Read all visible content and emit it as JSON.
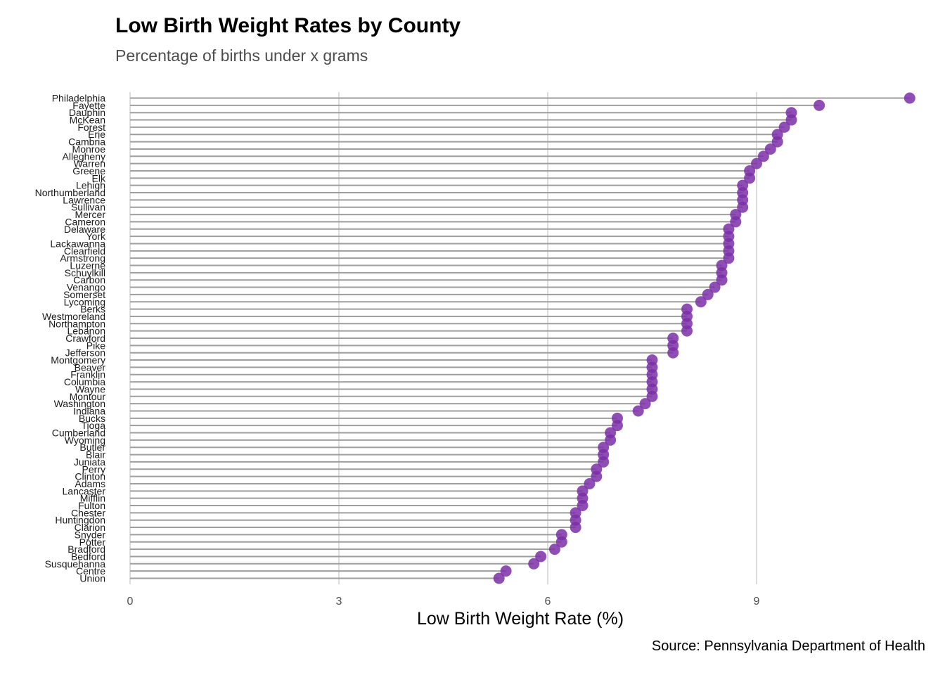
{
  "chart_data": {
    "type": "lollipop",
    "title": "Low Birth Weight Rates by County",
    "subtitle": "Percentage of births under x grams",
    "xlabel": "Low Birth Weight Rate (%)",
    "caption": "Source: Pennsylvania Department of Health",
    "xlim": [
      0,
      11.2
    ],
    "xticks": [
      0,
      3,
      6,
      9
    ],
    "grid": "vertical major",
    "colors": {
      "point": "#7b2fa6",
      "stem": "#9e9e9e",
      "grid": "#dcdcdc"
    },
    "categories": [
      "Philadelphia",
      "Fayette",
      "Dauphin",
      "McKean",
      "Forest",
      "Erie",
      "Cambria",
      "Monroe",
      "Allegheny",
      "Warren",
      "Greene",
      "Elk",
      "Lehigh",
      "Northumberland",
      "Lawrence",
      "Sullivan",
      "Mercer",
      "Cameron",
      "Delaware",
      "York",
      "Lackawanna",
      "Clearfield",
      "Armstrong",
      "Luzerne",
      "Schuylkill",
      "Carbon",
      "Venango",
      "Somerset",
      "Lycoming",
      "Berks",
      "Westmoreland",
      "Northampton",
      "Lebanon",
      "Crawford",
      "Pike",
      "Jefferson",
      "Montgomery",
      "Beaver",
      "Franklin",
      "Columbia",
      "Wayne",
      "Montour",
      "Washington",
      "Indiana",
      "Bucks",
      "Tioga",
      "Cumberland",
      "Wyoming",
      "Butler",
      "Blair",
      "Juniata",
      "Perry",
      "Clinton",
      "Adams",
      "Lancaster",
      "Mifflin",
      "Fulton",
      "Chester",
      "Huntingdon",
      "Clarion",
      "Snyder",
      "Potter",
      "Bradford",
      "Bedford",
      "Susquehanna",
      "Centre",
      "Union"
    ],
    "values": [
      11.2,
      9.9,
      9.5,
      9.5,
      9.4,
      9.3,
      9.3,
      9.2,
      9.1,
      9.0,
      8.9,
      8.9,
      8.8,
      8.8,
      8.8,
      8.8,
      8.7,
      8.7,
      8.6,
      8.6,
      8.6,
      8.6,
      8.6,
      8.5,
      8.5,
      8.5,
      8.4,
      8.3,
      8.2,
      8.0,
      8.0,
      8.0,
      8.0,
      7.8,
      7.8,
      7.8,
      7.5,
      7.5,
      7.5,
      7.5,
      7.5,
      7.5,
      7.4,
      7.3,
      7.0,
      7.0,
      6.9,
      6.9,
      6.8,
      6.8,
      6.8,
      6.7,
      6.7,
      6.6,
      6.5,
      6.5,
      6.5,
      6.4,
      6.4,
      6.4,
      6.2,
      6.2,
      6.1,
      5.9,
      5.8,
      5.4,
      5.3
    ]
  }
}
